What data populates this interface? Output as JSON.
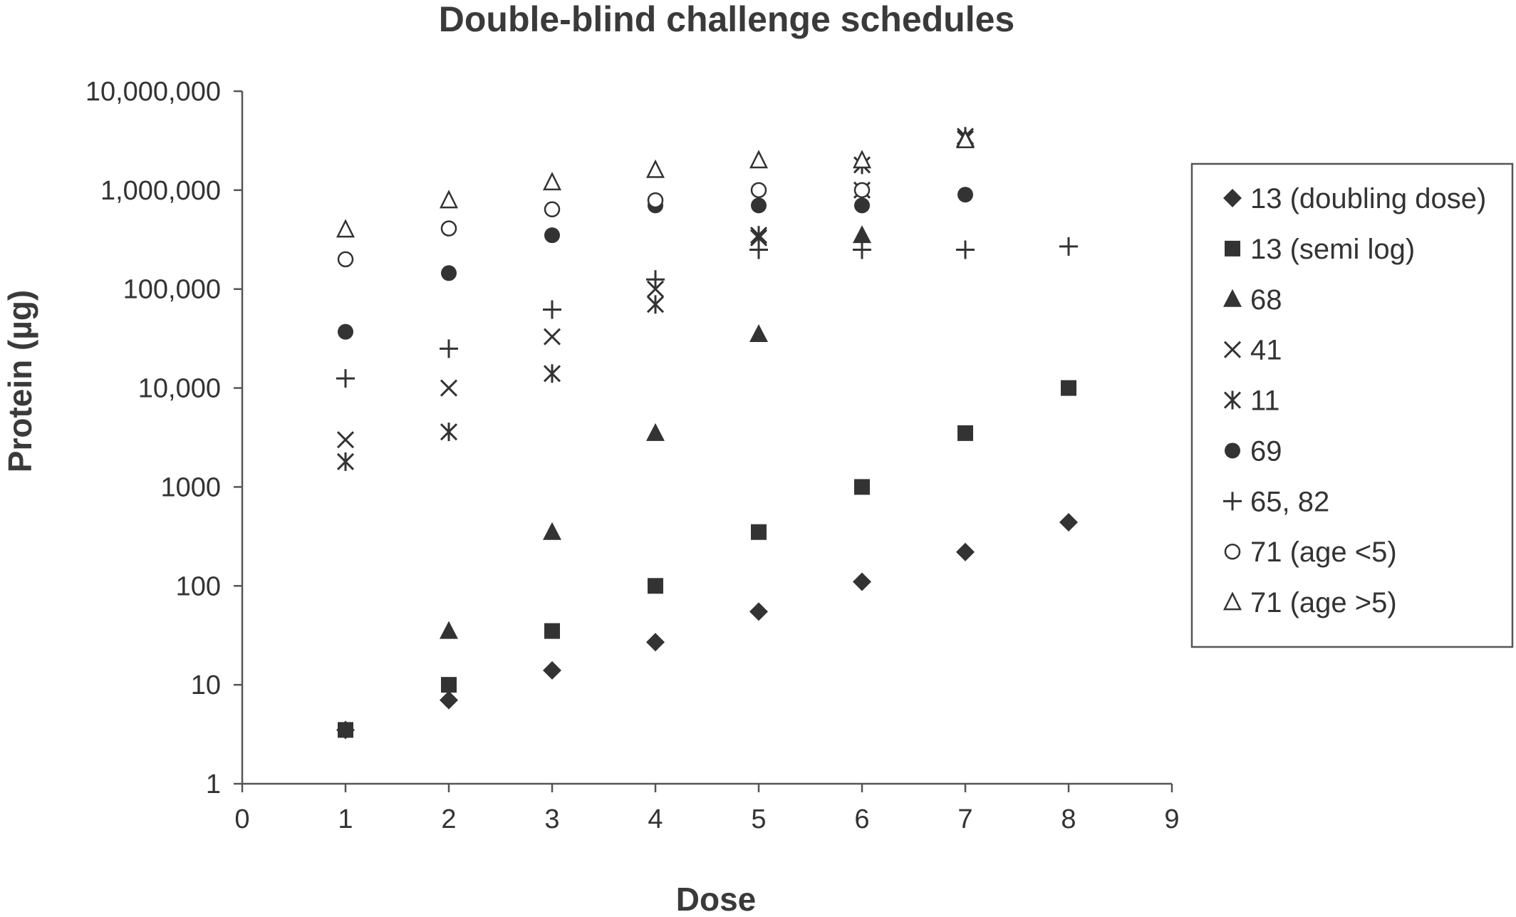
{
  "chart_data": {
    "type": "scatter",
    "title": "Double-blind challenge schedules",
    "xlabel": "Dose",
    "ylabel": "Protein (µg)",
    "xlim": [
      0,
      9
    ],
    "ylim": [
      1,
      10000000
    ],
    "yscale": "log",
    "x_ticks": [
      "0",
      "1",
      "2",
      "3",
      "4",
      "5",
      "6",
      "7",
      "8",
      "9"
    ],
    "y_ticks": [
      "1",
      "10",
      "100",
      "1000",
      "10,000",
      "100,000",
      "1,000,000",
      "10,000,000"
    ],
    "legend_position": "right",
    "grid": false,
    "color": "#333333",
    "series": [
      {
        "name": "13 (doubling dose)",
        "marker": "diamond",
        "points": [
          [
            1,
            3.5
          ],
          [
            2,
            7
          ],
          [
            3,
            14
          ],
          [
            4,
            27
          ],
          [
            5,
            55
          ],
          [
            6,
            110
          ],
          [
            7,
            220
          ],
          [
            8,
            440
          ]
        ]
      },
      {
        "name": "13 (semi log)",
        "marker": "square",
        "points": [
          [
            1,
            3.5
          ],
          [
            2,
            10
          ],
          [
            3,
            35
          ],
          [
            4,
            100
          ],
          [
            5,
            350
          ],
          [
            6,
            1000
          ],
          [
            7,
            3500
          ],
          [
            8,
            10000
          ]
        ]
      },
      {
        "name": "68",
        "marker": "triangle",
        "points": [
          [
            2,
            35
          ],
          [
            3,
            350
          ],
          [
            4,
            3500
          ],
          [
            5,
            35000
          ],
          [
            6,
            350000
          ],
          [
            7,
            3300000
          ]
        ]
      },
      {
        "name": "41",
        "marker": "x",
        "points": [
          [
            1,
            3000
          ],
          [
            2,
            10000
          ],
          [
            3,
            33000
          ],
          [
            4,
            100000
          ],
          [
            5,
            330000
          ],
          [
            6,
            1000000
          ],
          [
            7,
            3300000
          ]
        ]
      },
      {
        "name": "11",
        "marker": "asterisk",
        "points": [
          [
            1,
            1800
          ],
          [
            2,
            3600
          ],
          [
            3,
            14000
          ],
          [
            4,
            70000
          ],
          [
            5,
            350000
          ],
          [
            6,
            1800000
          ],
          [
            7,
            3500000
          ]
        ]
      },
      {
        "name": "69",
        "marker": "circle",
        "points": [
          [
            1,
            37000
          ],
          [
            2,
            145000
          ],
          [
            3,
            350000
          ],
          [
            4,
            700000
          ],
          [
            5,
            700000
          ],
          [
            6,
            700000
          ],
          [
            7,
            900000
          ]
        ]
      },
      {
        "name": "65, 82",
        "marker": "plus",
        "points": [
          [
            1,
            12500
          ],
          [
            2,
            25000
          ],
          [
            3,
            62000
          ],
          [
            4,
            125000
          ],
          [
            5,
            250000
          ],
          [
            6,
            250000
          ],
          [
            7,
            250000
          ],
          [
            8,
            270000
          ]
        ]
      },
      {
        "name": "71 (age <5)",
        "marker": "open-circle",
        "points": [
          [
            1,
            200000
          ],
          [
            2,
            410000
          ],
          [
            3,
            640000
          ],
          [
            4,
            790000
          ],
          [
            5,
            1000000
          ],
          [
            6,
            1000000
          ]
        ]
      },
      {
        "name": "71 (age >5)",
        "marker": "open-triangle",
        "points": [
          [
            1,
            400000
          ],
          [
            2,
            790000
          ],
          [
            3,
            1200000
          ],
          [
            4,
            1600000
          ],
          [
            5,
            2000000
          ],
          [
            6,
            2000000
          ],
          [
            7,
            3200000
          ]
        ]
      }
    ]
  }
}
